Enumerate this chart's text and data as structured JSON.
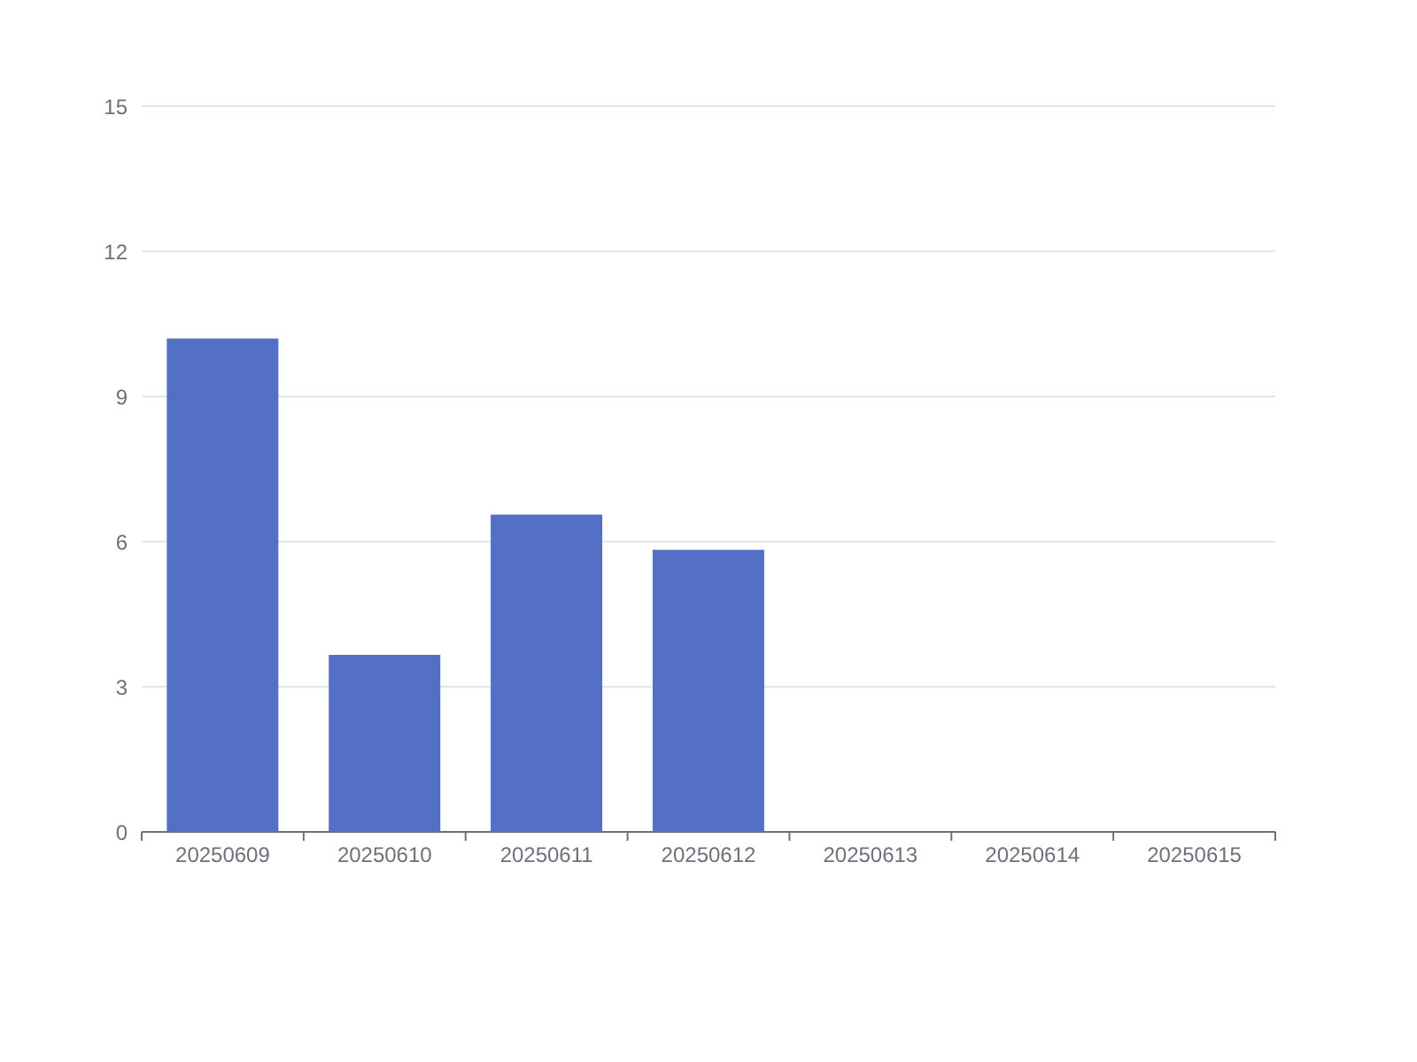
{
  "chart_data": {
    "type": "bar",
    "categories": [
      "20250609",
      "20250610",
      "20250611",
      "20250612",
      "20250613",
      "20250614",
      "20250615"
    ],
    "values": [
      10.2,
      3.66,
      6.56,
      5.83,
      0,
      0,
      0
    ],
    "color": "#5470c6",
    "ylim": [
      0,
      15
    ],
    "yticks": [
      0,
      3,
      6,
      9,
      12,
      15
    ],
    "grid": "y"
  }
}
